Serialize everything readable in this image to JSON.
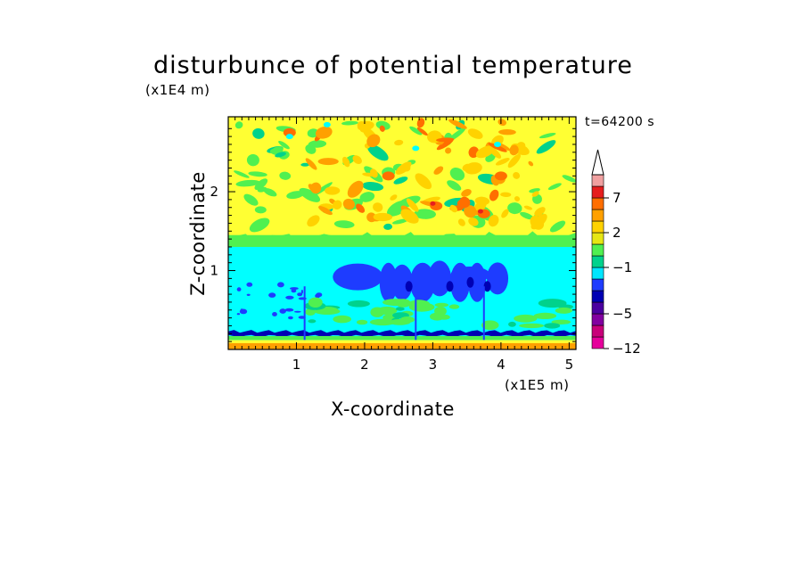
{
  "chart_data": {
    "type": "heatmap",
    "title": "disturbunce of potential temperature",
    "xlabel": "X-coordinate",
    "ylabel": "Z-coordinate",
    "x_unit": "(x1E5 m)",
    "y_unit": "(x1E4 m)",
    "time_label": "t=64200 s",
    "xlim": [
      0,
      5.1
    ],
    "ylim": [
      0,
      2.95
    ],
    "x_ticks": [
      1,
      2,
      3,
      4,
      5
    ],
    "y_ticks": [
      1,
      2
    ],
    "colorbar": {
      "levels": [
        -12,
        -9,
        -7,
        -5,
        -4,
        -3,
        -2,
        -1,
        0,
        1,
        2,
        3,
        5,
        7,
        9,
        12
      ],
      "labeled_ticks": [
        {
          "value": 7,
          "label": "7"
        },
        {
          "value": 2,
          "label": "2"
        },
        {
          "value": -1,
          "label": "−1"
        },
        {
          "value": -5,
          "label": "−5"
        },
        {
          "value": -12,
          "label": "−12"
        }
      ],
      "colors": [
        "#e6009b",
        "#c8007a",
        "#8200a0",
        "#4b00a0",
        "#0000b4",
        "#1e3cff",
        "#00e6ff",
        "#00d28c",
        "#50f050",
        "#e6e614",
        "#ffd200",
        "#ffa000",
        "#ff6e00",
        "#e61e1e",
        "#f0a0a0"
      ],
      "extend": "max"
    },
    "regions": [
      {
        "name": "upper layer",
        "z_range": [
          1.4,
          2.95
        ],
        "dominant_value": 0.5,
        "range": [
          -1,
          5
        ]
      },
      {
        "name": "transition band",
        "z_range": [
          1.25,
          1.45
        ],
        "dominant_value": -0.5
      },
      {
        "name": "middle layer",
        "z_range": [
          0.25,
          1.25
        ],
        "dominant_value": -2,
        "range": [
          -5,
          -1
        ]
      },
      {
        "name": "low-level band",
        "z_range": [
          0.1,
          0.25
        ],
        "dominant_value": -5
      }
    ]
  },
  "palette": {
    "yellow": "#ffff33",
    "orange": "#ffa000",
    "light_orange": "#ffd200",
    "deep_orange": "#ff6e00",
    "green": "#50f050",
    "teal": "#00d28c",
    "cyan": "#00ffff",
    "blue": "#1e3cff",
    "navy": "#0000b4",
    "red": "#e61e1e"
  }
}
